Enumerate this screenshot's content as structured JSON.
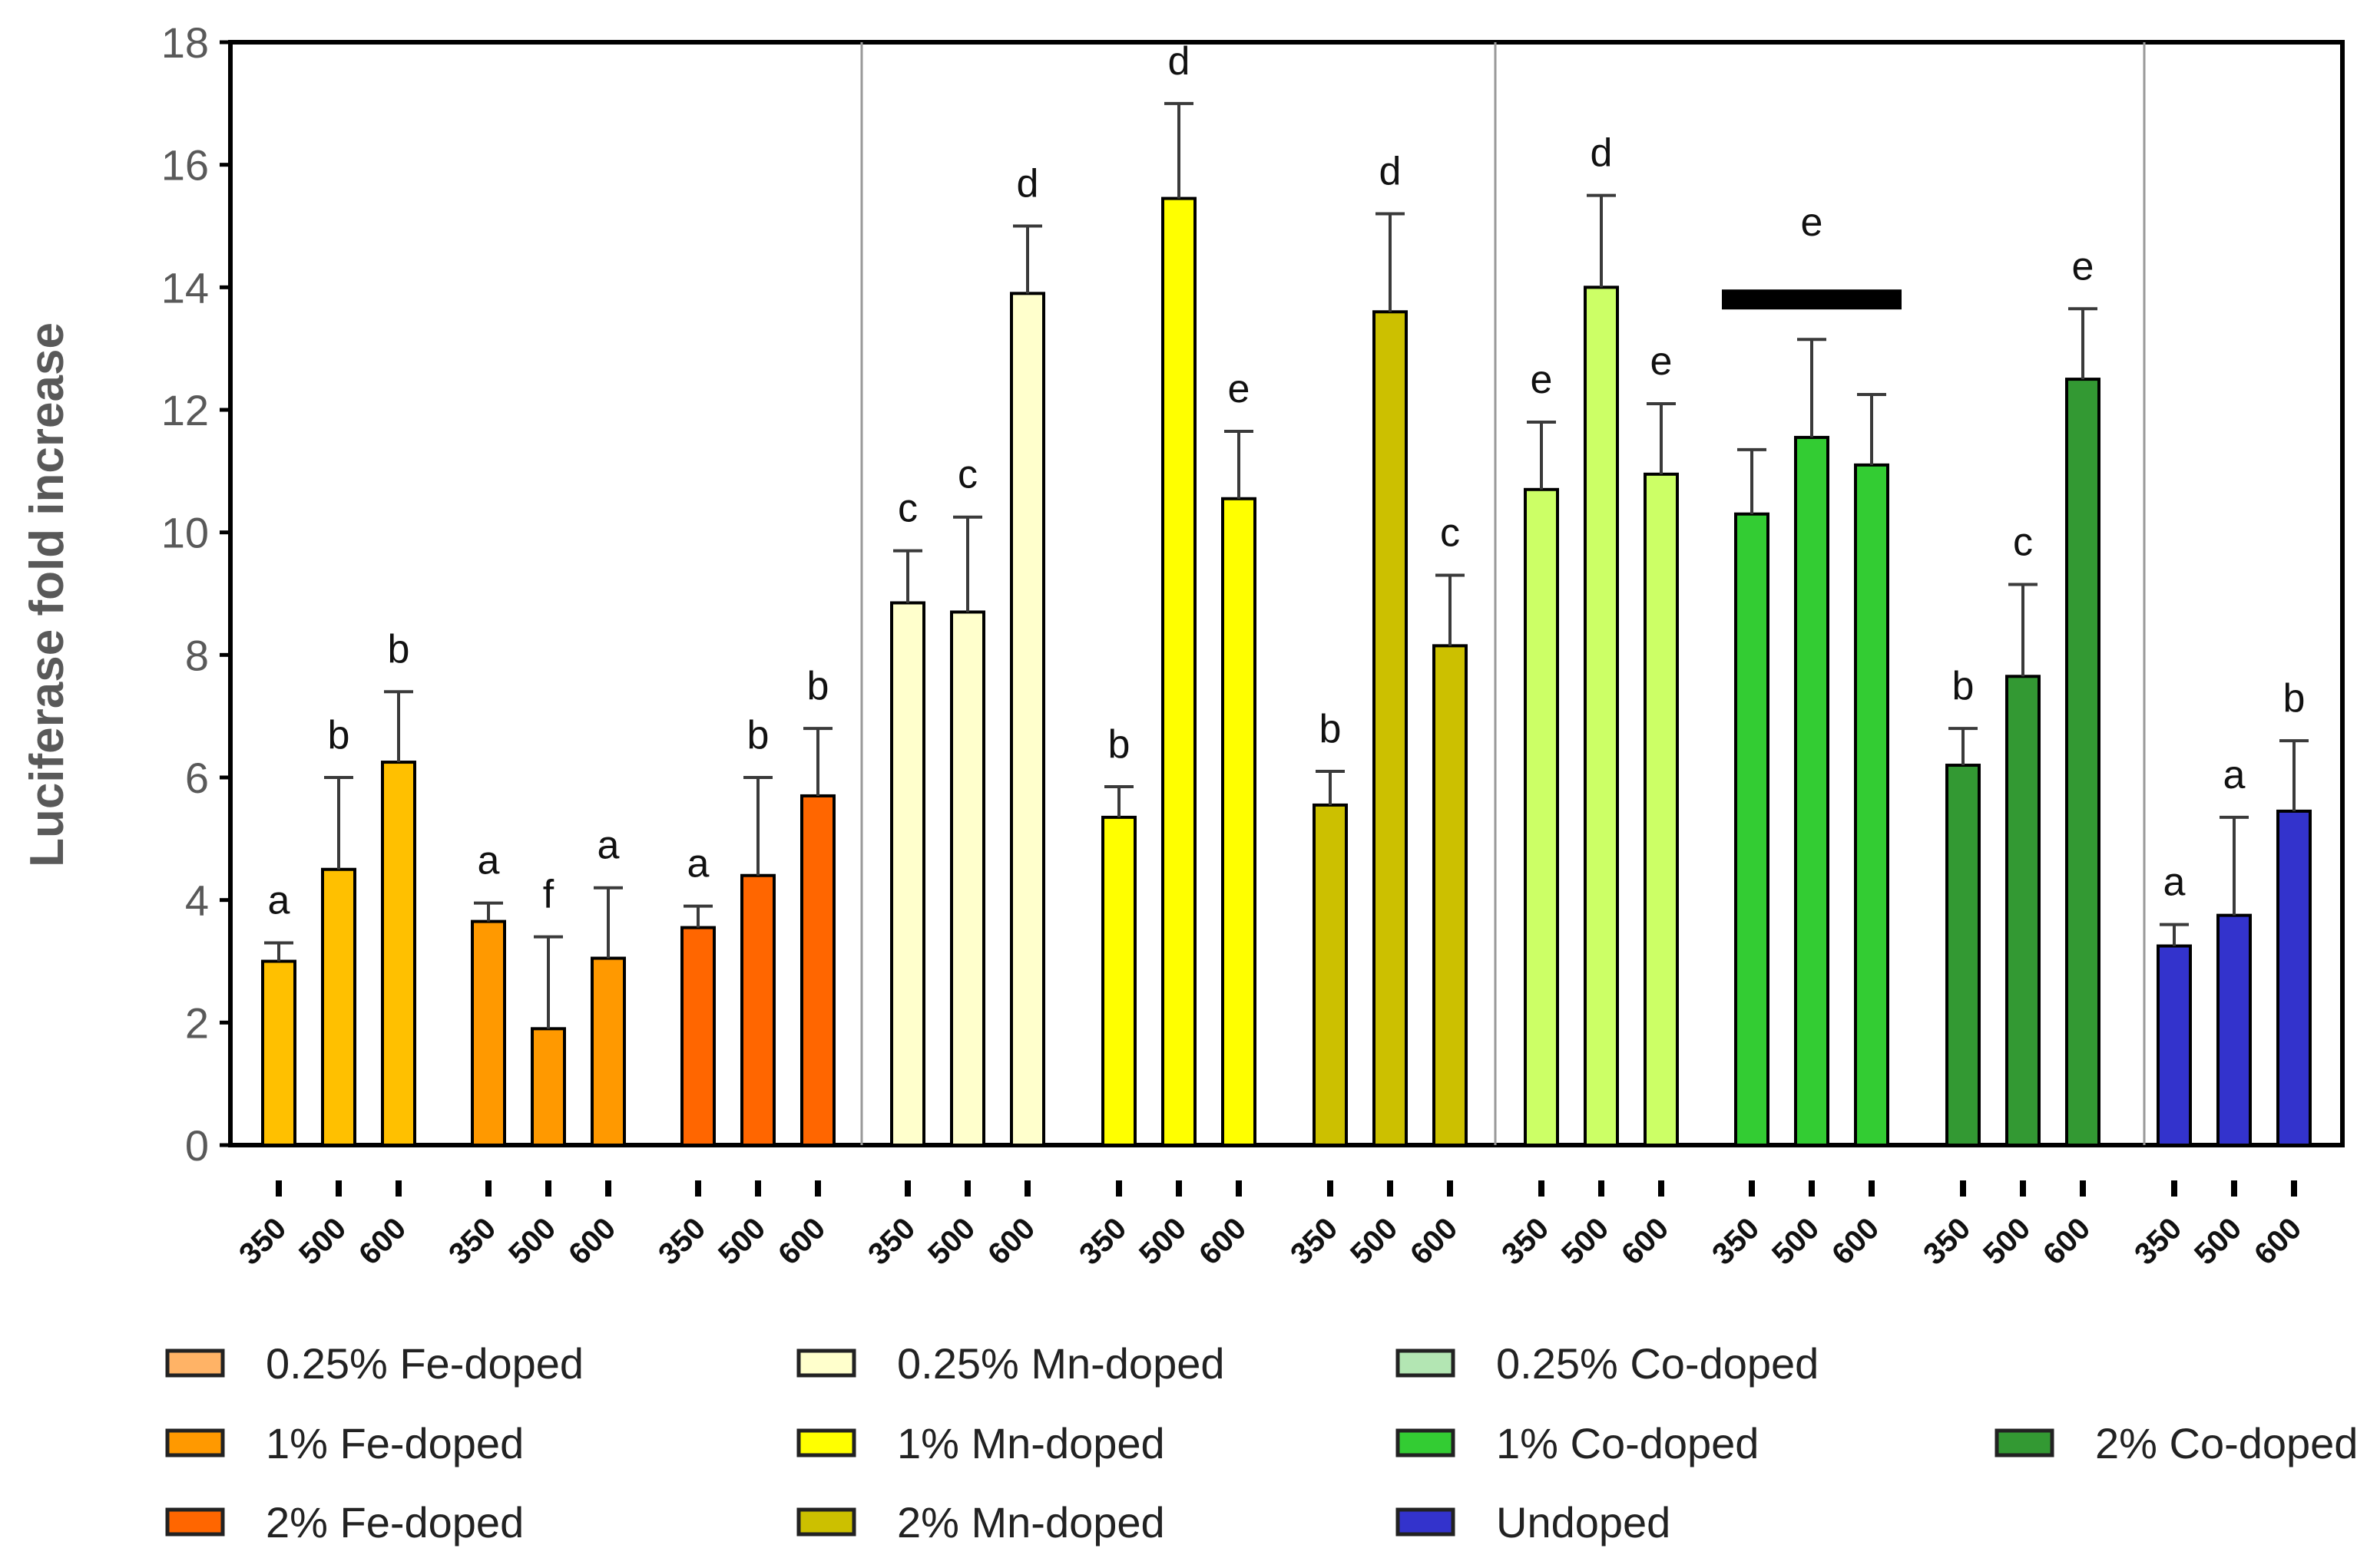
{
  "chart_data": {
    "type": "bar",
    "title": "",
    "xlabel": "",
    "ylabel": "Luciferase fold increase",
    "ylim": [
      0,
      18
    ],
    "yticks": [
      "0",
      "2",
      "4",
      "6",
      "8",
      "10",
      "12",
      "14",
      "16",
      "18"
    ],
    "x_categories": [
      "350",
      "500",
      "600"
    ],
    "grid": false,
    "series": [
      {
        "name": "0.25% Fe-doped",
        "color": "#FFC000",
        "values": [
          3.0,
          4.5,
          6.25
        ],
        "errors": [
          0.3,
          1.5,
          1.15
        ],
        "letters": [
          "a",
          "b",
          "b"
        ]
      },
      {
        "name": "1% Fe-doped",
        "color": "#FF9900",
        "values": [
          3.65,
          1.9,
          3.05
        ],
        "errors": [
          0.3,
          1.5,
          1.15
        ],
        "letters": [
          "a",
          "f",
          "a"
        ]
      },
      {
        "name": "2% Fe-doped",
        "color": "#FF6600",
        "values": [
          3.55,
          4.4,
          5.7
        ],
        "errors": [
          0.35,
          1.6,
          1.1
        ],
        "letters": [
          "a",
          "b",
          "b"
        ]
      },
      {
        "name": "0.25% Mn-doped",
        "color": "#FFFFCC",
        "values": [
          8.85,
          8.7,
          13.9
        ],
        "errors": [
          0.85,
          1.55,
          1.1
        ],
        "letters": [
          "c",
          "c",
          "d"
        ]
      },
      {
        "name": "1% Mn-doped",
        "color": "#FFFF00",
        "values": [
          5.35,
          15.45,
          10.55
        ],
        "errors": [
          0.5,
          1.55,
          1.1
        ],
        "letters": [
          "b",
          "d",
          "e"
        ]
      },
      {
        "name": "2% Mn-doped",
        "color": "#CCC000",
        "values": [
          5.55,
          13.6,
          8.15
        ],
        "errors": [
          0.55,
          1.6,
          1.15
        ],
        "letters": [
          "b",
          "d",
          "c"
        ]
      },
      {
        "name": "0.25% Co-doped",
        "color": "#CCFF66",
        "values": [
          10.7,
          14.0,
          10.95
        ],
        "errors": [
          1.1,
          1.5,
          1.15
        ],
        "letters": [
          "e",
          "d",
          "e"
        ]
      },
      {
        "name": "1% Co-doped",
        "color": "#33CC33",
        "values": [
          10.3,
          11.55,
          11.1
        ],
        "errors": [
          1.05,
          1.6,
          1.15
        ],
        "letters": [],
        "group_letter": "e"
      },
      {
        "name": "2% Co-doped",
        "color": "#339933",
        "values": [
          6.2,
          7.65,
          12.5
        ],
        "errors": [
          0.6,
          1.5,
          1.15
        ],
        "letters": [
          "b",
          "c",
          "e"
        ]
      },
      {
        "name": "Undoped",
        "color": "#3333CC",
        "values": [
          3.25,
          3.75,
          5.45
        ],
        "errors": [
          0.35,
          1.6,
          1.15
        ],
        "letters": [
          "a",
          "a",
          "b"
        ]
      }
    ],
    "legend": [
      {
        "label": "0.25% Fe-doped",
        "color": "#FFB366"
      },
      {
        "label": "1% Fe-doped",
        "color": "#FF9900"
      },
      {
        "label": "2% Fe-doped",
        "color": "#FF6600"
      },
      {
        "label": "0.25% Mn-doped",
        "color": "#FFFFCC"
      },
      {
        "label": "1% Mn-doped",
        "color": "#FFFF00"
      },
      {
        "label": "2% Mn-doped",
        "color": "#CCC000"
      },
      {
        "label": "0.25% Co-doped",
        "color": "#B3E6B3"
      },
      {
        "label": "1% Co-doped",
        "color": "#33CC33"
      },
      {
        "label": "2% Co-doped",
        "color": "#339933"
      },
      {
        "label": "Undoped",
        "color": "#3333CC"
      }
    ]
  }
}
